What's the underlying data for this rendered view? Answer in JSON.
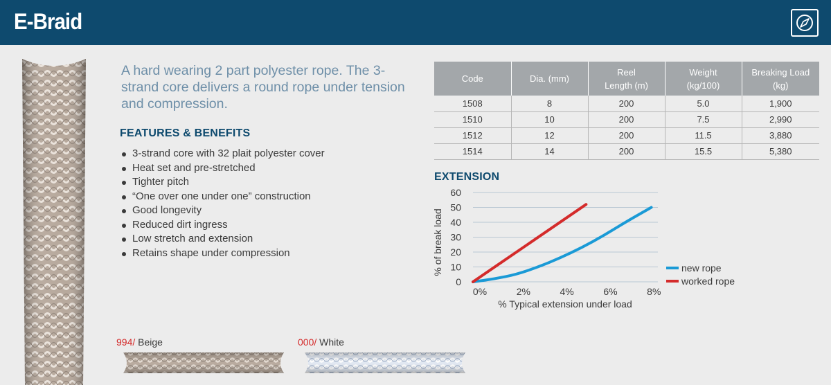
{
  "header": {
    "title": "E-Braid",
    "icon": "compass-icon"
  },
  "intro": "A hard wearing 2 part polyester rope. The 3-strand core delivers a round rope under tension and compression.",
  "features": {
    "title": "FEATURES & BENEFITS",
    "items": [
      "3-strand core with 32 plait polyester cover",
      "Heat set and pre-stretched",
      "Tighter pitch",
      "“One over one under one” construction",
      "Good longevity",
      "Reduced dirt ingress",
      "Low stretch and extension",
      "Retains shape under compression"
    ]
  },
  "table": {
    "headers": [
      "Code",
      "Dia. (mm)",
      "Reel Length (m)",
      "Weight (kg/100)",
      "Breaking Load (kg)"
    ],
    "rows": [
      [
        "1508",
        "8",
        "200",
        "5.0",
        "1,900"
      ],
      [
        "1510",
        "10",
        "200",
        "7.5",
        "2,990"
      ],
      [
        "1512",
        "12",
        "200",
        "11.5",
        "3,880"
      ],
      [
        "1514",
        "14",
        "200",
        "15.5",
        "5,380"
      ]
    ]
  },
  "extension": {
    "title": "EXTENSION"
  },
  "chart_data": {
    "type": "line",
    "title": "EXTENSION",
    "xlabel": "% Typical extension under load",
    "ylabel": "% of break load",
    "xlim": [
      0,
      8.5
    ],
    "ylim": [
      0,
      60
    ],
    "x_ticks": [
      "0%",
      "2%",
      "4%",
      "6%",
      "8%"
    ],
    "y_ticks": [
      "0",
      "10",
      "20",
      "30",
      "40",
      "50",
      "60"
    ],
    "grid": true,
    "legend_position": "right",
    "series": [
      {
        "name": "new rope",
        "color": "#1a9ad6",
        "points": [
          [
            0,
            0
          ],
          [
            1,
            2
          ],
          [
            2,
            5
          ],
          [
            3,
            10
          ],
          [
            4,
            16
          ],
          [
            5,
            23
          ],
          [
            6,
            31
          ],
          [
            7,
            40
          ],
          [
            8.2,
            50
          ]
        ]
      },
      {
        "name": "worked rope",
        "color": "#d42b2b",
        "points": [
          [
            0,
            0
          ],
          [
            5.2,
            52
          ]
        ]
      }
    ]
  },
  "swatches": [
    {
      "code": "994/",
      "name": " Beige",
      "color": "#b8a99c"
    },
    {
      "code": "000/",
      "name": " White",
      "color": "#eef2f8"
    }
  ],
  "colors": {
    "header": "#0e4a6e",
    "accent": "#0e4a6e",
    "intro": "#6e8fa8",
    "code": "#d42b2b"
  }
}
